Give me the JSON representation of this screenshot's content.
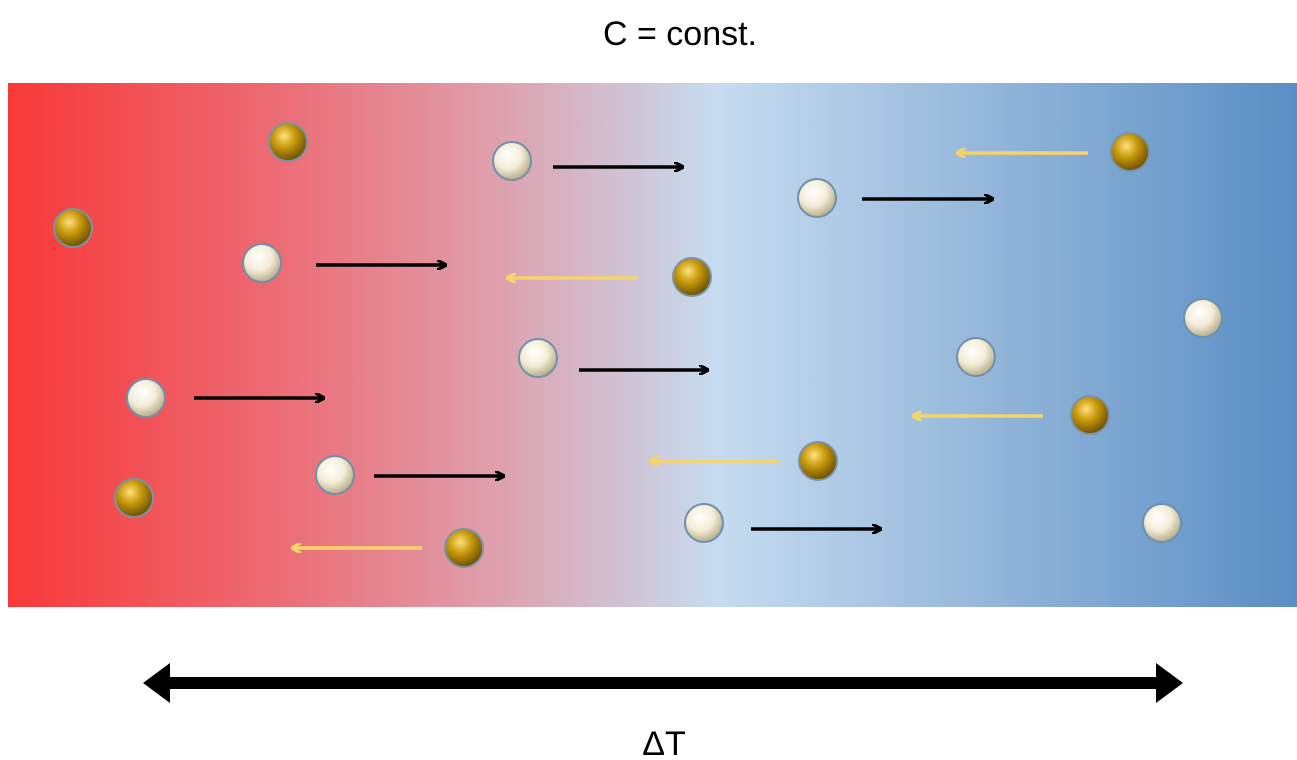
{
  "title": "C = const.",
  "axis_label": "ΔT"
}
